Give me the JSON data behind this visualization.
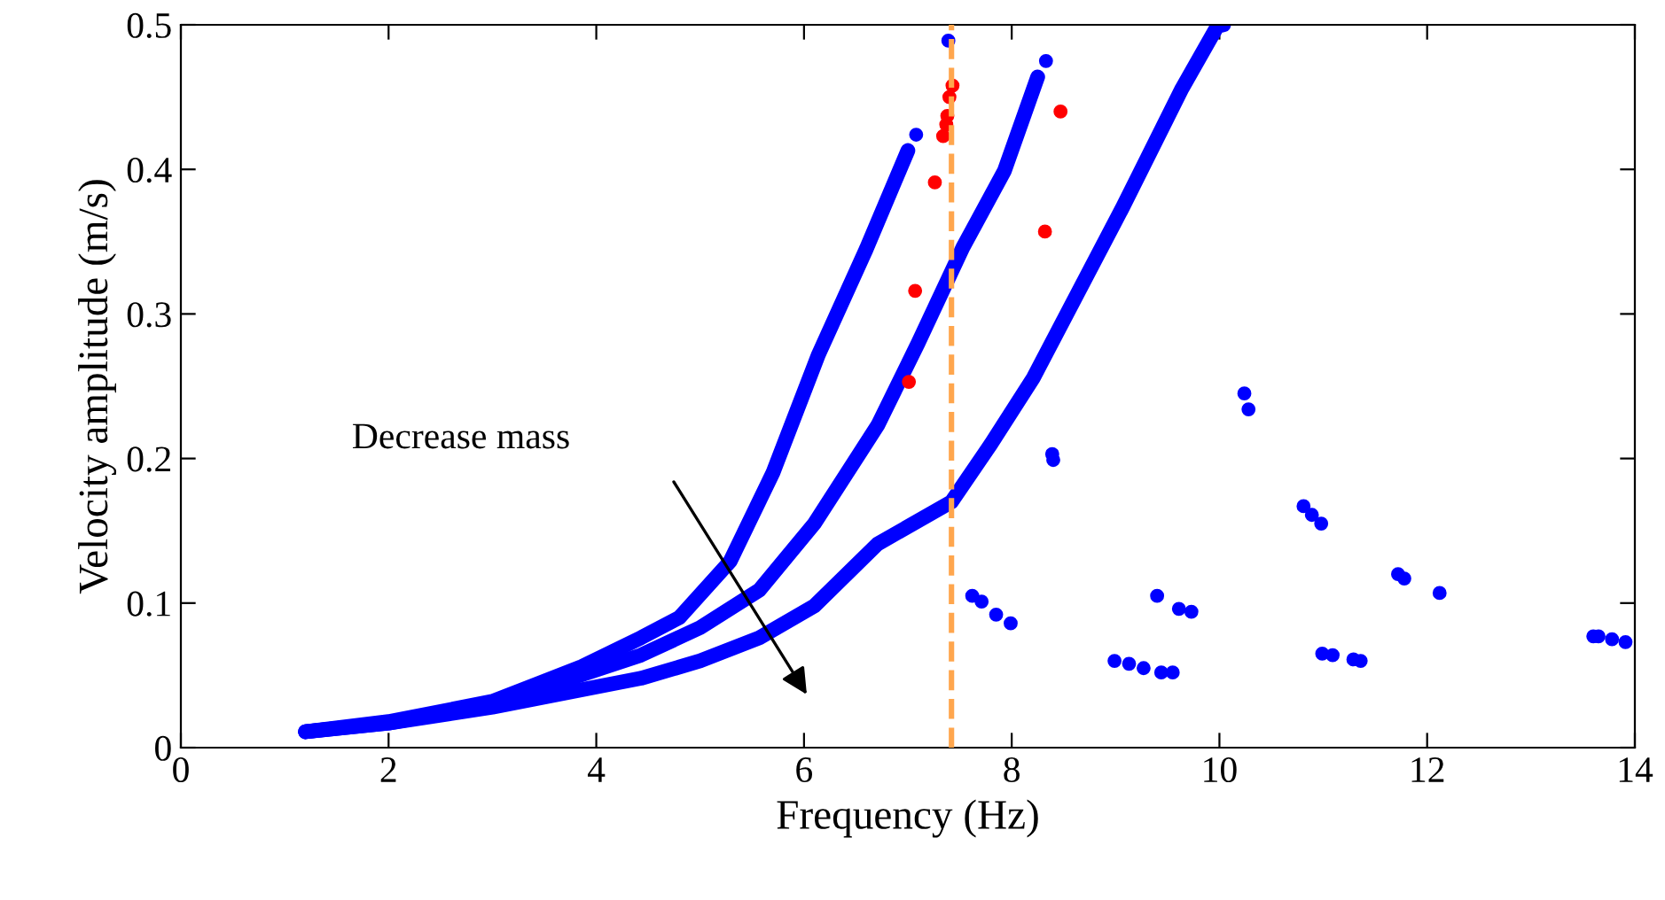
{
  "chart_data": {
    "type": "scatter",
    "marker": "circle",
    "xlabel": "Frequency (Hz)",
    "ylabel": "Velocity amplitude (m/s)",
    "xlim": [
      0,
      14
    ],
    "ylim": [
      0,
      0.5
    ],
    "xticks": [
      0,
      2,
      4,
      6,
      8,
      10,
      12,
      14
    ],
    "yticks": [
      0,
      0.1,
      0.2,
      0.3,
      0.4,
      0.5
    ],
    "grid": false,
    "legend": false,
    "series": [
      {
        "type": "line",
        "marker": "none",
        "color": "#0000ff",
        "x": [
          1.2,
          2,
          3,
          3.86,
          4.43,
          4.8,
          5.29,
          5.7,
          6.14,
          6.6,
          7.0
        ],
        "values": [
          0.011,
          0.018,
          0.032,
          0.056,
          0.076,
          0.09,
          0.129,
          0.19,
          0.272,
          0.345,
          0.413
        ]
      },
      {
        "type": "line",
        "marker": "none",
        "color": "#0000ff",
        "x": [
          1.2,
          2,
          3,
          4.43,
          5.0,
          5.57,
          6.1,
          6.71,
          7.1,
          7.53,
          7.93,
          8.25
        ],
        "values": [
          0.011,
          0.017,
          0.03,
          0.064,
          0.083,
          0.109,
          0.155,
          0.223,
          0.28,
          0.346,
          0.399,
          0.464
        ]
      },
      {
        "type": "line",
        "marker": "none",
        "color": "#0000ff",
        "x": [
          1.2,
          2,
          3,
          4.43,
          5.0,
          5.57,
          6.1,
          6.71,
          7.42,
          7.8,
          8.21,
          9.07,
          9.64,
          9.98,
          10.04
        ],
        "values": [
          0.011,
          0.017,
          0.028,
          0.048,
          0.06,
          0.076,
          0.098,
          0.141,
          0.17,
          0.21,
          0.256,
          0.374,
          0.456,
          0.499,
          0.5
        ]
      },
      {
        "color": "#0000ff",
        "x": [
          7.08,
          8.33,
          7.39,
          7.62,
          7.71,
          7.85,
          7.99,
          8.39,
          8.4,
          8.99,
          9.13,
          9.27,
          9.44,
          9.55,
          9.4,
          9.61,
          9.73,
          10.24,
          10.28,
          10.81,
          10.89,
          10.98,
          10.99,
          11.09,
          11.29,
          11.36,
          11.72,
          11.78,
          12.12,
          13.6,
          13.65,
          13.78,
          13.91
        ],
        "values": [
          0.424,
          0.475,
          0.489,
          0.105,
          0.101,
          0.092,
          0.086,
          0.203,
          0.199,
          0.06,
          0.058,
          0.055,
          0.052,
          0.052,
          0.105,
          0.096,
          0.094,
          0.245,
          0.234,
          0.167,
          0.161,
          0.155,
          0.065,
          0.064,
          0.061,
          0.06,
          0.12,
          0.117,
          0.107,
          0.077,
          0.077,
          0.075,
          0.073
        ]
      },
      {
        "color": "#ff0000",
        "x": [
          7.07,
          7.01,
          7.26,
          7.34,
          7.37,
          7.38,
          7.4,
          7.43,
          8.47,
          8.32
        ],
        "values": [
          0.316,
          0.253,
          0.391,
          0.423,
          0.431,
          0.437,
          0.45,
          0.458,
          0.44,
          0.357
        ]
      }
    ],
    "ref_lines": [
      {
        "axis": "x",
        "value": 7.42,
        "color": "#ffa64d",
        "line_style": "dashed"
      }
    ],
    "annotations": [
      "Decrease mass"
    ]
  }
}
